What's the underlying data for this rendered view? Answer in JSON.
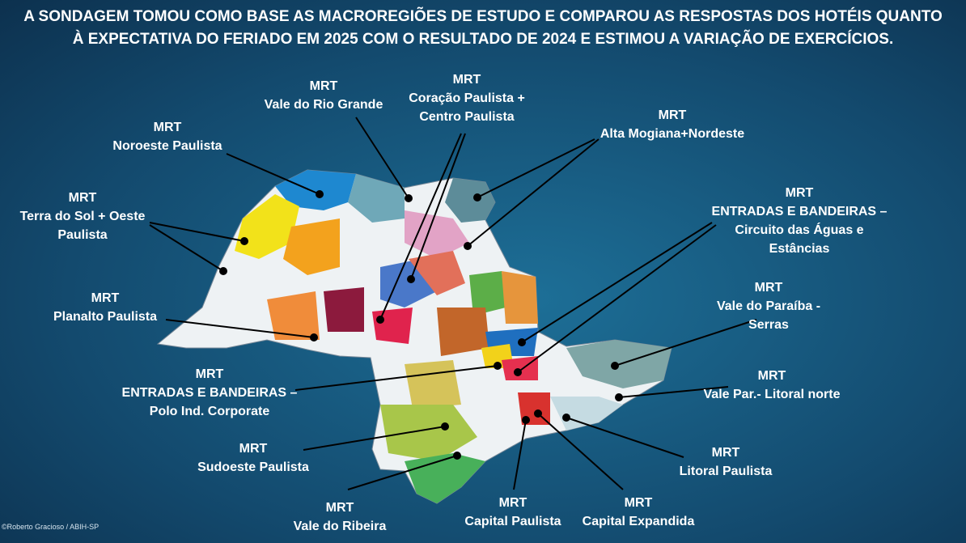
{
  "header": {
    "title": [
      "A SONDAGEM TOMOU COMO BASE AS MACROREGIÕES DE ESTUDO E COMPAROU AS RESPOSTAS DOS HOTÉIS QUANTO",
      "À EXPECTATIVA DO FERIADO EM 2025 COM O RESULTADO DE 2024 E ESTIMOU A VARIAÇÃO DE EXERCÍCIOS."
    ]
  },
  "regions": [
    {
      "lines": [
        "MRT",
        "Vale do Rio Grande"
      ]
    },
    {
      "lines": [
        "MRT",
        "Coração Paulista +",
        "Centro Paulista"
      ]
    },
    {
      "lines": [
        "MRT",
        "Noroeste Paulista"
      ]
    },
    {
      "lines": [
        "MRT",
        "Alta Mogiana+Nordeste"
      ]
    },
    {
      "lines": [
        "MRT",
        "Terra do Sol + Oeste",
        "Paulista"
      ]
    },
    {
      "lines": [
        "MRT",
        "ENTRADAS E BANDEIRAS –",
        "Circuito das Águas e",
        "Estâncias"
      ]
    },
    {
      "lines": [
        "MRT",
        "Planalto Paulista"
      ]
    },
    {
      "lines": [
        "MRT",
        "Vale do Paraíba -",
        "Serras"
      ]
    },
    {
      "lines": [
        "MRT",
        "ENTRADAS E BANDEIRAS –",
        "Polo Ind. Corporate"
      ]
    },
    {
      "lines": [
        "MRT",
        "Vale Par.- Litoral norte"
      ]
    },
    {
      "lines": [
        "MRT",
        "Sudoeste Paulista"
      ]
    },
    {
      "lines": [
        "MRT",
        "Litoral Paulista"
      ]
    },
    {
      "lines": [
        "MRT",
        "Vale do Ribeira"
      ]
    },
    {
      "lines": [
        "MRT",
        "Capital Paulista"
      ]
    },
    {
      "lines": [
        "MRT",
        "Capital Expandida"
      ]
    }
  ],
  "credit": "©Roberto Gracioso / ABIH-SP"
}
